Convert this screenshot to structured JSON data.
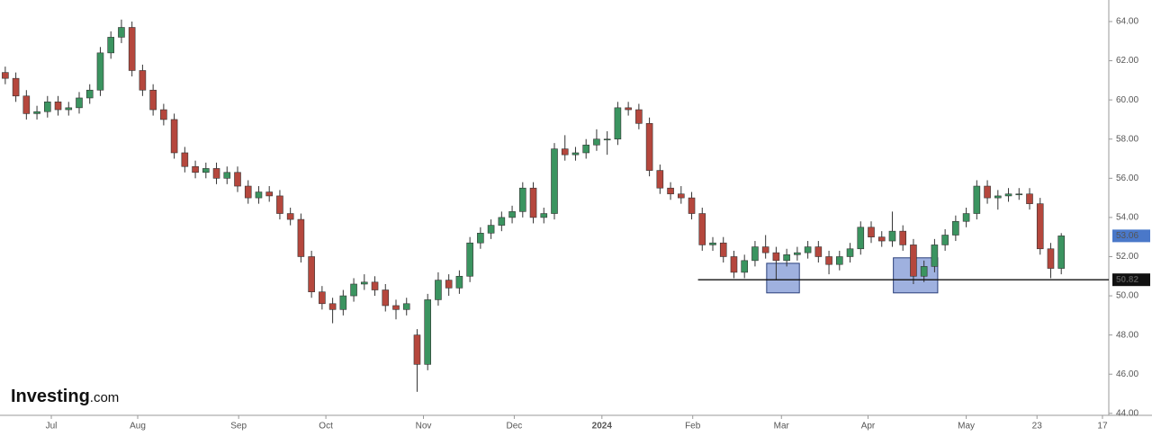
{
  "chart_data": {
    "type": "candlestick",
    "logo": "Investing",
    "logo_suffix": ".com",
    "up_color": "#3b9460",
    "down_color": "#b5473d",
    "grid": false,
    "xlim": [
      -0.5,
      104.5
    ],
    "ylim": [
      43.9,
      65.1
    ],
    "yticks": [
      {
        "value": 44,
        "label": "44.00"
      },
      {
        "value": 46,
        "label": "46.00"
      },
      {
        "value": 48,
        "label": "48.00"
      },
      {
        "value": 50,
        "label": "50.00"
      },
      {
        "value": 52,
        "label": "52.00"
      },
      {
        "value": 54,
        "label": "54.00"
      },
      {
        "value": 56,
        "label": "56.00"
      },
      {
        "value": 58,
        "label": "58.00"
      },
      {
        "value": 60,
        "label": "60.00"
      },
      {
        "value": 62,
        "label": "62.00"
      },
      {
        "value": 64,
        "label": "64.00"
      }
    ],
    "xticks": [
      {
        "value": 4.36,
        "label": "Jul"
      },
      {
        "value": 12.54,
        "label": "Aug"
      },
      {
        "value": 22.1,
        "label": "Sep"
      },
      {
        "value": 30.36,
        "label": "Oct"
      },
      {
        "value": 39.6,
        "label": "Nov"
      },
      {
        "value": 48.2,
        "label": "Dec"
      },
      {
        "value": 56.5,
        "label": "2024"
      },
      {
        "value": 65.1,
        "label": "Feb"
      },
      {
        "value": 73.5,
        "label": "Mar"
      },
      {
        "value": 81.7,
        "label": "Apr"
      },
      {
        "value": 91.0,
        "label": "May"
      },
      {
        "value": 97.7,
        "label": "23"
      },
      {
        "value": 103.9,
        "label": "17"
      }
    ],
    "x": [
      0,
      1,
      2,
      3,
      4,
      5,
      6,
      7,
      8,
      9,
      10,
      11,
      12,
      13,
      14,
      15,
      16,
      17,
      18,
      19,
      20,
      21,
      22,
      23,
      24,
      25,
      26,
      27,
      28,
      29,
      30,
      31,
      32,
      33,
      34,
      35,
      36,
      37,
      38,
      39,
      40,
      41,
      42,
      43,
      44,
      45,
      46,
      47,
      48,
      49,
      50,
      51,
      52,
      53,
      54,
      55,
      56,
      57,
      58,
      59,
      60,
      61,
      62,
      63,
      64,
      65,
      66,
      67,
      68,
      69,
      70,
      71,
      72,
      73,
      74,
      75,
      76,
      77,
      78,
      79,
      80,
      81,
      82,
      83,
      84,
      85,
      86,
      87,
      88,
      89,
      90,
      91,
      92,
      93,
      94,
      95,
      96,
      97,
      98,
      99,
      100
    ],
    "open": [
      61.4,
      61.1,
      60.2,
      59.3,
      59.4,
      59.9,
      59.5,
      59.6,
      60.1,
      60.5,
      62.4,
      63.2,
      63.7,
      61.5,
      60.5,
      59.5,
      59.0,
      57.3,
      56.6,
      56.3,
      56.5,
      56.0,
      56.3,
      55.6,
      55.0,
      55.3,
      55.1,
      54.2,
      53.9,
      52.0,
      50.2,
      49.6,
      49.3,
      50.0,
      50.6,
      50.7,
      50.3,
      49.5,
      49.3,
      48.0,
      46.5,
      49.8,
      50.8,
      50.4,
      51.0,
      52.7,
      53.2,
      53.6,
      54.0,
      54.3,
      55.5,
      54.0,
      54.2,
      57.5,
      57.2,
      57.3,
      57.7,
      58.0,
      58.0,
      59.6,
      59.5,
      58.8,
      56.4,
      55.5,
      55.2,
      55.0,
      54.2,
      52.6,
      52.7,
      52.0,
      51.2,
      51.8,
      52.5,
      52.2,
      51.8,
      52.1,
      52.2,
      52.5,
      52.0,
      51.6,
      52.0,
      52.4,
      53.5,
      53.0,
      52.8,
      53.3,
      52.6,
      51.0,
      51.5,
      52.6,
      53.1,
      53.8,
      54.2,
      55.6,
      55.0,
      55.1,
      55.2,
      55.2,
      54.7,
      52.4,
      51.4
    ],
    "high": [
      61.7,
      61.4,
      60.5,
      59.7,
      60.2,
      60.2,
      59.9,
      60.4,
      60.8,
      62.7,
      63.5,
      64.1,
      64.0,
      61.8,
      60.8,
      59.8,
      59.3,
      57.6,
      56.9,
      56.8,
      56.8,
      56.6,
      56.6,
      55.9,
      55.6,
      55.6,
      55.4,
      54.5,
      54.2,
      52.3,
      50.5,
      49.9,
      50.3,
      50.9,
      51.1,
      51.0,
      50.6,
      49.8,
      49.9,
      48.3,
      50.1,
      51.2,
      51.1,
      51.3,
      53.0,
      53.5,
      53.9,
      54.3,
      54.6,
      55.8,
      55.8,
      54.5,
      57.8,
      58.2,
      57.6,
      58.0,
      58.5,
      58.4,
      59.9,
      59.9,
      59.8,
      59.1,
      56.7,
      55.8,
      55.6,
      55.3,
      54.5,
      53.0,
      53.0,
      52.3,
      52.1,
      52.8,
      53.1,
      52.5,
      52.4,
      52.5,
      52.8,
      52.8,
      52.3,
      52.3,
      52.7,
      53.8,
      53.8,
      53.3,
      54.3,
      53.6,
      52.9,
      51.8,
      52.9,
      53.4,
      54.1,
      54.5,
      55.9,
      55.9,
      55.4,
      55.5,
      55.5,
      55.5,
      55.0,
      52.7,
      53.2
    ],
    "low": [
      60.8,
      59.9,
      59.0,
      59.0,
      59.1,
      59.2,
      59.2,
      59.3,
      59.8,
      60.2,
      62.1,
      62.9,
      61.2,
      60.2,
      59.2,
      58.7,
      57.0,
      56.3,
      56.0,
      56.0,
      55.7,
      55.7,
      55.3,
      54.7,
      54.7,
      54.8,
      53.9,
      53.6,
      51.7,
      49.9,
      49.3,
      48.6,
      49.0,
      49.7,
      50.3,
      50.0,
      49.2,
      48.8,
      49.0,
      45.1,
      46.2,
      49.5,
      50.0,
      50.1,
      50.7,
      52.4,
      52.9,
      53.3,
      53.7,
      54.0,
      53.7,
      53.7,
      53.9,
      56.9,
      56.9,
      57.0,
      57.4,
      57.2,
      57.7,
      59.2,
      58.5,
      56.1,
      55.2,
      54.9,
      54.7,
      53.9,
      52.3,
      52.3,
      51.7,
      50.9,
      50.9,
      51.5,
      51.9,
      50.8,
      51.5,
      51.8,
      51.9,
      51.7,
      51.1,
      51.3,
      51.7,
      52.1,
      52.7,
      52.5,
      52.5,
      52.3,
      50.6,
      50.7,
      51.2,
      52.3,
      52.8,
      53.5,
      53.9,
      54.7,
      54.4,
      54.8,
      54.9,
      54.4,
      52.1,
      50.9,
      51.1
    ],
    "close": [
      61.1,
      60.2,
      59.3,
      59.4,
      59.9,
      59.5,
      59.6,
      60.1,
      60.5,
      62.4,
      63.2,
      63.7,
      61.5,
      60.5,
      59.5,
      59.0,
      57.3,
      56.6,
      56.3,
      56.5,
      56.0,
      56.3,
      55.6,
      55.0,
      55.3,
      55.1,
      54.2,
      53.9,
      52.0,
      50.2,
      49.6,
      49.3,
      50.0,
      50.6,
      50.7,
      50.3,
      49.5,
      49.3,
      49.6,
      46.5,
      49.8,
      50.8,
      50.4,
      51.0,
      52.7,
      53.2,
      53.6,
      54.0,
      54.3,
      55.5,
      54.0,
      54.2,
      57.5,
      57.2,
      57.3,
      57.7,
      58.0,
      58.0,
      59.6,
      59.5,
      58.8,
      56.4,
      55.5,
      55.2,
      55.0,
      54.2,
      52.6,
      52.7,
      52.0,
      51.2,
      51.8,
      52.5,
      52.2,
      51.8,
      52.1,
      52.2,
      52.5,
      52.0,
      51.6,
      52.0,
      52.4,
      53.5,
      53.0,
      52.8,
      53.3,
      52.6,
      51.0,
      51.5,
      52.6,
      53.1,
      53.8,
      54.2,
      55.6,
      55.0,
      55.1,
      55.2,
      55.2,
      54.7,
      52.4,
      51.4,
      53.06
    ],
    "last_price_color": "#4a78c9",
    "support_line": {
      "value": 50.82,
      "x_start": 65.6,
      "color": "#111111"
    },
    "highlights": [
      {
        "x": [
          72.1,
          75.2
        ],
        "y": [
          50.15,
          51.66
        ]
      },
      {
        "x": [
          84.1,
          88.3
        ],
        "y": [
          50.15,
          51.94
        ]
      }
    ],
    "highlight_color": "#8ea3d9"
  }
}
